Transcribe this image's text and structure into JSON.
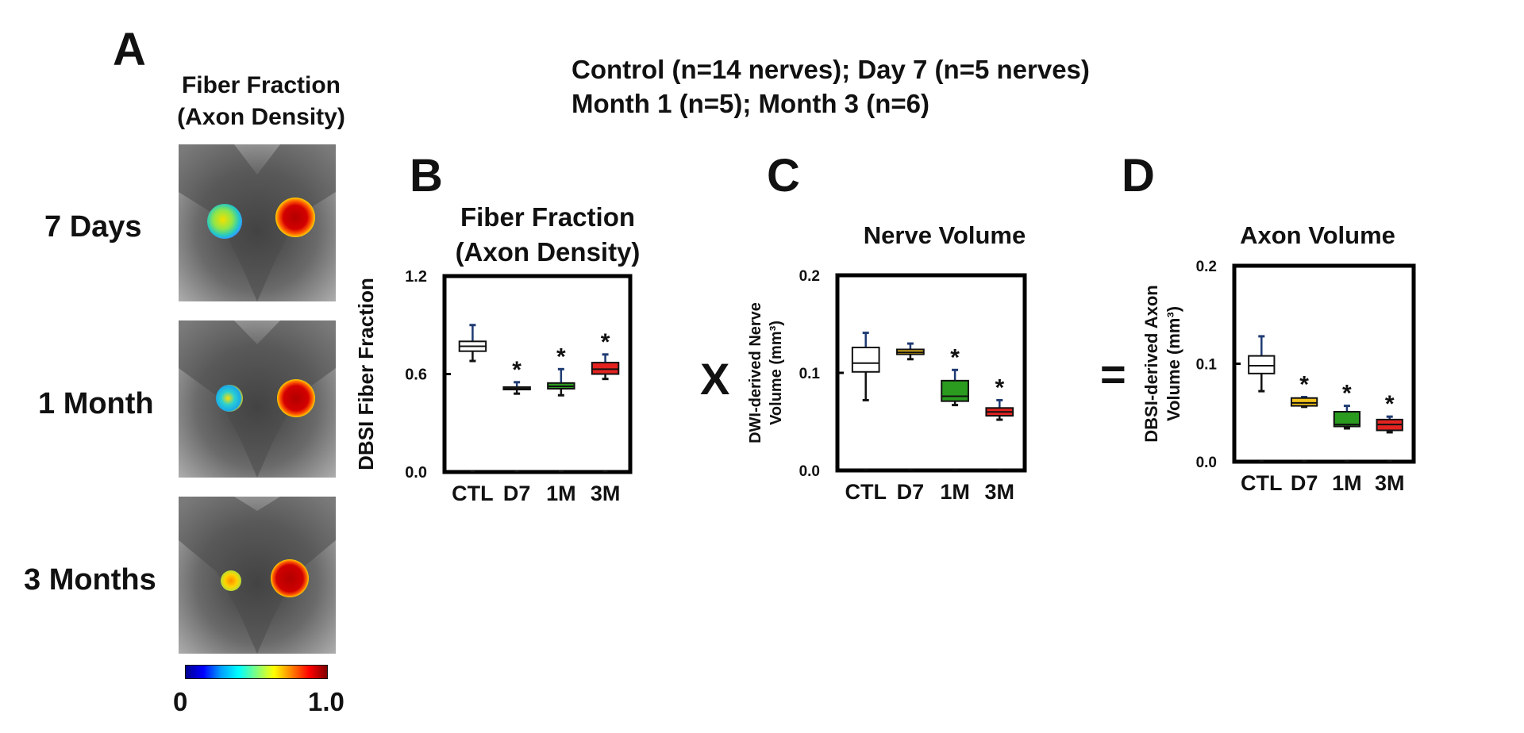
{
  "panel_a": {
    "letter": "A",
    "title_line1": "Fiber Fraction",
    "title_line2": "(Axon Density)",
    "rows": [
      {
        "label": "7 Days",
        "left_spot_value": 0.55,
        "right_spot_value": 0.95
      },
      {
        "label": "1 Month",
        "left_spot_value": 0.45,
        "right_spot_value": 0.95
      },
      {
        "label": "3 Months",
        "left_spot_value": 0.6,
        "right_spot_value": 0.98
      }
    ],
    "colorbar": {
      "min_label": "0",
      "max_label": "1.0",
      "colormap": "jet"
    }
  },
  "header": {
    "line1": "Control (n=14 nerves); Day 7 (n=5 nerves)",
    "line2": "Month 1 (n=5); Month 3 (n=6)"
  },
  "operators": {
    "multiply": "X",
    "equals": "="
  },
  "colors": {
    "ctl": "#ffffff",
    "d7": "#f0c21c",
    "m1": "#2a9b1f",
    "m3": "#e42320",
    "whisker": "#1f3b73"
  },
  "chart_data": [
    {
      "type": "box",
      "letter": "B",
      "title_line1": "Fiber Fraction",
      "title_line2": "(Axon Density)",
      "ylabel": "DBSI Fiber Fraction",
      "ylabel_lines": [
        "DBSI Fiber Fraction"
      ],
      "ylim": [
        0,
        1.2
      ],
      "yticks": [
        0,
        0.6,
        1.2
      ],
      "ytick_labels": [
        "0.0",
        "0.6",
        "1.2"
      ],
      "categories": [
        "CTL",
        "D7",
        "1M",
        "3M"
      ],
      "boxes": [
        {
          "min": 0.68,
          "q1": 0.74,
          "median": 0.77,
          "q3": 0.8,
          "max": 0.9,
          "sig": ""
        },
        {
          "min": 0.48,
          "q1": 0.505,
          "median": 0.51,
          "q3": 0.52,
          "max": 0.55,
          "sig": "*"
        },
        {
          "min": 0.47,
          "q1": 0.51,
          "median": 0.525,
          "q3": 0.545,
          "max": 0.63,
          "sig": "*"
        },
        {
          "min": 0.57,
          "q1": 0.6,
          "median": 0.63,
          "q3": 0.67,
          "max": 0.72,
          "sig": "*"
        }
      ]
    },
    {
      "type": "box",
      "letter": "C",
      "title_line1": "Nerve Volume",
      "title_line2": "",
      "ylabel": "DWI-derived Nerve Volume (mm3)",
      "ylabel_lines": [
        "DWI-derived Nerve",
        "Volume (mm³)"
      ],
      "ylim": [
        0,
        0.2
      ],
      "yticks": [
        0,
        0.1,
        0.2
      ],
      "ytick_labels": [
        "0.0",
        "0.1",
        "0.2"
      ],
      "categories": [
        "CTL",
        "D7",
        "1M",
        "3M"
      ],
      "boxes": [
        {
          "min": 0.072,
          "q1": 0.101,
          "median": 0.11,
          "q3": 0.126,
          "max": 0.141,
          "sig": ""
        },
        {
          "min": 0.114,
          "q1": 0.119,
          "median": 0.121,
          "q3": 0.124,
          "max": 0.13,
          "sig": ""
        },
        {
          "min": 0.067,
          "q1": 0.071,
          "median": 0.076,
          "q3": 0.092,
          "max": 0.103,
          "sig": "*"
        },
        {
          "min": 0.052,
          "q1": 0.056,
          "median": 0.06,
          "q3": 0.064,
          "max": 0.072,
          "sig": "*"
        }
      ]
    },
    {
      "type": "box",
      "letter": "D",
      "title_line1": "Axon Volume",
      "title_line2": "",
      "ylabel": "DBSI-derived Axon Volume (mm3)",
      "ylabel_lines": [
        "DBSI-derived Axon",
        "Volume (mm³)"
      ],
      "ylim": [
        0,
        0.2
      ],
      "yticks": [
        0,
        0.1,
        0.2
      ],
      "ytick_labels": [
        "0.0",
        "0.1",
        "0.2"
      ],
      "categories": [
        "CTL",
        "D7",
        "1M",
        "3M"
      ],
      "boxes": [
        {
          "min": 0.072,
          "q1": 0.09,
          "median": 0.098,
          "q3": 0.108,
          "max": 0.128,
          "sig": ""
        },
        {
          "min": 0.056,
          "q1": 0.057,
          "median": 0.06,
          "q3": 0.065,
          "max": 0.066,
          "sig": "*"
        },
        {
          "min": 0.034,
          "q1": 0.036,
          "median": 0.038,
          "q3": 0.051,
          "max": 0.057,
          "sig": "*"
        },
        {
          "min": 0.03,
          "q1": 0.032,
          "median": 0.038,
          "q3": 0.043,
          "max": 0.046,
          "sig": "*"
        }
      ]
    }
  ]
}
